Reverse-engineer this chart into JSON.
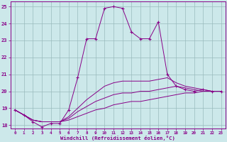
{
  "title": "Windchill (Refroidissement éolien,°C)",
  "bg_color": "#cce8ea",
  "line_color": "#880088",
  "grid_color": "#99bbbd",
  "xlim": [
    -0.5,
    23.5
  ],
  "ylim": [
    17.8,
    25.3
  ],
  "yticks": [
    18,
    19,
    20,
    21,
    22,
    23,
    24,
    25
  ],
  "xticks": [
    0,
    1,
    2,
    3,
    4,
    5,
    6,
    7,
    8,
    9,
    10,
    11,
    12,
    13,
    14,
    15,
    16,
    17,
    18,
    19,
    20,
    21,
    22,
    23
  ],
  "line1_x": [
    0,
    1,
    2,
    3,
    4,
    5,
    6,
    7,
    8,
    9,
    10,
    11,
    12,
    13,
    14,
    15,
    16,
    17,
    18,
    19,
    20,
    21,
    22,
    23
  ],
  "line1_y": [
    18.9,
    18.6,
    18.2,
    17.9,
    18.1,
    18.1,
    18.9,
    20.8,
    23.1,
    23.1,
    24.9,
    25.0,
    24.9,
    23.5,
    23.1,
    23.1,
    24.1,
    21.0,
    20.3,
    20.1,
    20.0,
    20.1,
    20.0,
    20.0
  ],
  "line2_x": [
    0,
    1,
    2,
    3,
    4,
    5,
    6,
    7,
    8,
    9,
    10,
    11,
    12,
    13,
    14,
    15,
    16,
    17,
    18,
    19,
    20,
    21,
    22,
    23
  ],
  "line2_y": [
    18.9,
    18.6,
    18.3,
    18.2,
    18.2,
    18.2,
    18.5,
    19.0,
    19.5,
    19.9,
    20.3,
    20.5,
    20.6,
    20.6,
    20.6,
    20.6,
    20.7,
    20.8,
    20.5,
    20.3,
    20.2,
    20.1,
    20.0,
    20.0
  ],
  "line3_x": [
    0,
    1,
    2,
    3,
    4,
    5,
    6,
    7,
    8,
    9,
    10,
    11,
    12,
    13,
    14,
    15,
    16,
    17,
    18,
    19,
    20,
    21,
    22,
    23
  ],
  "line3_y": [
    18.9,
    18.6,
    18.3,
    18.2,
    18.2,
    18.2,
    18.4,
    18.8,
    19.1,
    19.4,
    19.6,
    19.8,
    19.9,
    19.9,
    20.0,
    20.0,
    20.1,
    20.2,
    20.3,
    20.2,
    20.1,
    20.0,
    20.0,
    20.0
  ],
  "line4_x": [
    0,
    1,
    2,
    3,
    4,
    5,
    6,
    7,
    8,
    9,
    10,
    11,
    12,
    13,
    14,
    15,
    16,
    17,
    18,
    19,
    20,
    21,
    22,
    23
  ],
  "line4_y": [
    18.9,
    18.6,
    18.3,
    18.2,
    18.2,
    18.2,
    18.3,
    18.5,
    18.7,
    18.9,
    19.0,
    19.2,
    19.3,
    19.4,
    19.4,
    19.5,
    19.6,
    19.7,
    19.8,
    19.9,
    19.9,
    20.0,
    20.0,
    20.0
  ]
}
